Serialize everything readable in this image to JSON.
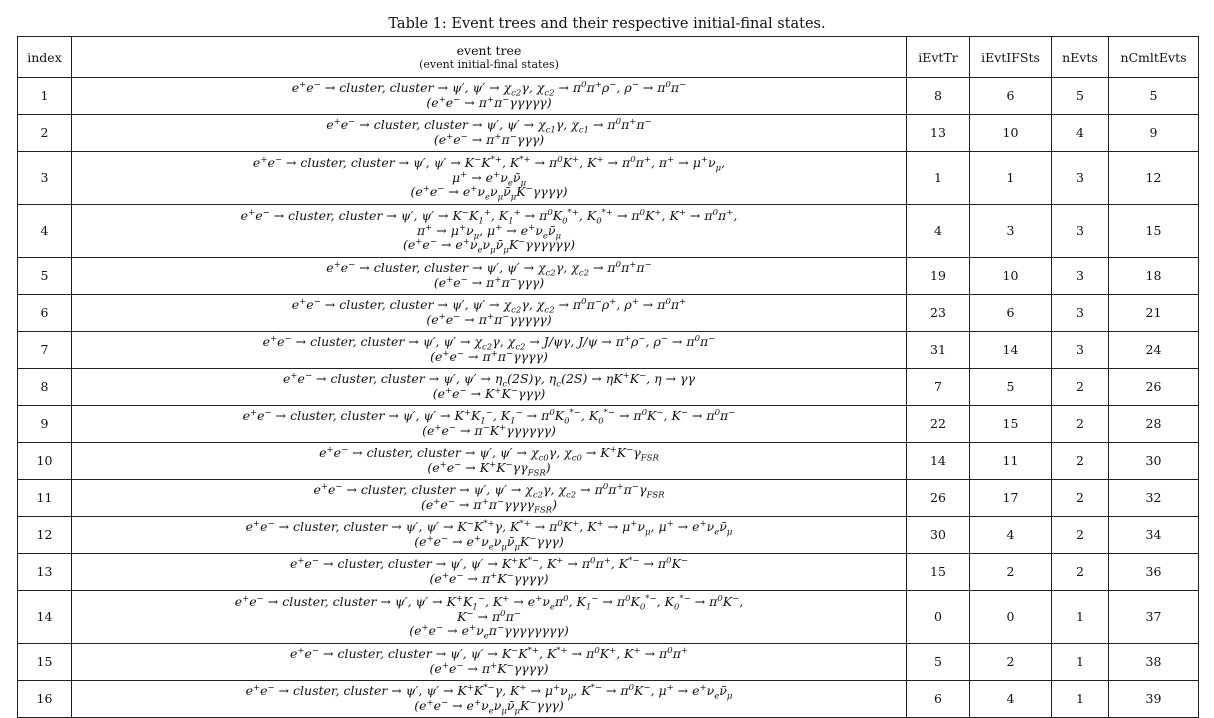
{
  "caption": "Table 1: Event trees and their respective initial-final states.",
  "headers": {
    "index": "index",
    "tree_line1": "event tree",
    "tree_line2": "(event initial-final states)",
    "iEvtTr": "iEvtTr",
    "iEvtIFSts": "iEvtIFSts",
    "nEvts": "nEvts",
    "nCmltEvts": "nCmltEvts"
  },
  "rows": [
    {
      "index": "1",
      "tree": [
        "e⁺e⁻ → cluster, cluster → ψ′, ψ′ → χc2γ, χc2 → π⁰π⁺ρ⁻, ρ⁻ → π⁰π⁻",
        "(e⁺e⁻ → π⁺π⁻γγγγγ)"
      ],
      "tree_html": [
        "e<sup>+</sup>e<sup>−</sup> → cluster, cluster → ψ′, ψ′ → χ<sub>c2</sub>γ, χ<sub>c2</sub> → π<sup>0</sup>π<sup>+</sup>ρ<sup>−</sup>, ρ<sup>−</sup> → π<sup>0</sup>π<sup>−</sup>",
        "(e<sup>+</sup>e<sup>−</sup> → π<sup>+</sup>π<sup>−</sup>γγγγγ)"
      ],
      "iEvtTr": "8",
      "iEvtIFSts": "6",
      "nEvts": "5",
      "nCmltEvts": "5"
    },
    {
      "index": "2",
      "tree": [
        "e⁺e⁻ → cluster, cluster → ψ′, ψ′ → χc1γ, χc1 → π⁰π⁺π⁻",
        "(e⁺e⁻ → π⁺π⁻γγγ)"
      ],
      "tree_html": [
        "e<sup>+</sup>e<sup>−</sup> → cluster, cluster → ψ′, ψ′ → χ<sub>c1</sub>γ, χ<sub>c1</sub> → π<sup>0</sup>π<sup>+</sup>π<sup>−</sup>",
        "(e<sup>+</sup>e<sup>−</sup> → π<sup>+</sup>π<sup>−</sup>γγγ)"
      ],
      "iEvtTr": "13",
      "iEvtIFSts": "10",
      "nEvts": "4",
      "nCmltEvts": "9"
    },
    {
      "index": "3",
      "tree": [
        "e⁺e⁻ → cluster, cluster → ψ′, ψ′ → K⁻K*⁺, K*⁺ → π⁰K⁺, K⁺ → π⁰π⁺, π⁺ → μ⁺νμ,",
        "μ⁺ → e⁺νeν̄μ",
        "(e⁺e⁻ → e⁺νeνμν̄μK⁻γγγγ)"
      ],
      "tree_html": [
        "e<sup>+</sup>e<sup>−</sup> → cluster, cluster → ψ′, ψ′ → K<sup>−</sup>K<sup>*+</sup>, K<sup>*+</sup> → π<sup>0</sup>K<sup>+</sup>, K<sup>+</sup> → π<sup>0</sup>π<sup>+</sup>, π<sup>+</sup> → μ<sup>+</sup>ν<sub>μ</sub>,",
        "μ<sup>+</sup> → e<sup>+</sup>ν<sub>e</sub>ν̄<sub>μ</sub>",
        "(e<sup>+</sup>e<sup>−</sup> → e<sup>+</sup>ν<sub>e</sub>ν<sub>μ</sub>ν̄<sub>μ</sub>K<sup>−</sup>γγγγ)"
      ],
      "iEvtTr": "1",
      "iEvtIFSts": "1",
      "nEvts": "3",
      "nCmltEvts": "12"
    },
    {
      "index": "4",
      "tree": [
        "e⁺e⁻ → cluster, cluster → ψ′, ψ′ → K⁻K1⁺, K1⁺ → π⁰K0*⁺, K0*⁺ → π⁰K⁺, K⁺ → π⁰π⁺,",
        "π⁺ → μ⁺νμ, μ⁺ → e⁺νeν̄μ",
        "(e⁺e⁻ → e⁺νeνμν̄μK⁻γγγγγγ)"
      ],
      "tree_html": [
        "e<sup>+</sup>e<sup>−</sup> → cluster, cluster → ψ′, ψ′ → K<sup>−</sup>K<sub>1</sub><sup>+</sup>, K<sub>1</sub><sup>+</sup> → π<sup>0</sup>K<sub>0</sub><sup>*+</sup>, K<sub>0</sub><sup>*+</sup> → π<sup>0</sup>K<sup>+</sup>, K<sup>+</sup> → π<sup>0</sup>π<sup>+</sup>,",
        "π<sup>+</sup> → μ<sup>+</sup>ν<sub>μ</sub>, μ<sup>+</sup> → e<sup>+</sup>ν<sub>e</sub>ν̄<sub>μ</sub>",
        "(e<sup>+</sup>e<sup>−</sup> → e<sup>+</sup>ν<sub>e</sub>ν<sub>μ</sub>ν̄<sub>μ</sub>K<sup>−</sup>γγγγγγ)"
      ],
      "iEvtTr": "4",
      "iEvtIFSts": "3",
      "nEvts": "3",
      "nCmltEvts": "15"
    },
    {
      "index": "5",
      "tree": [
        "e⁺e⁻ → cluster, cluster → ψ′, ψ′ → χc2γ, χc2 → π⁰π⁺π⁻",
        "(e⁺e⁻ → π⁺π⁻γγγ)"
      ],
      "tree_html": [
        "e<sup>+</sup>e<sup>−</sup> → cluster, cluster → ψ′, ψ′ → χ<sub>c2</sub>γ, χ<sub>c2</sub> → π<sup>0</sup>π<sup>+</sup>π<sup>−</sup>",
        "(e<sup>+</sup>e<sup>−</sup> → π<sup>+</sup>π<sup>−</sup>γγγ)"
      ],
      "iEvtTr": "19",
      "iEvtIFSts": "10",
      "nEvts": "3",
      "nCmltEvts": "18"
    },
    {
      "index": "6",
      "tree": [
        "e⁺e⁻ → cluster, cluster → ψ′, ψ′ → χc2γ, χc2 → π⁰π⁻ρ⁺, ρ⁺ → π⁰π⁺",
        "(e⁺e⁻ → π⁺π⁻γγγγγ)"
      ],
      "tree_html": [
        "e<sup>+</sup>e<sup>−</sup> → cluster, cluster → ψ′, ψ′ → χ<sub>c2</sub>γ, χ<sub>c2</sub> → π<sup>0</sup>π<sup>−</sup>ρ<sup>+</sup>, ρ<sup>+</sup> → π<sup>0</sup>π<sup>+</sup>",
        "(e<sup>+</sup>e<sup>−</sup> → π<sup>+</sup>π<sup>−</sup>γγγγγ)"
      ],
      "iEvtTr": "23",
      "iEvtIFSts": "6",
      "nEvts": "3",
      "nCmltEvts": "21"
    },
    {
      "index": "7",
      "tree": [
        "e⁺e⁻ → cluster, cluster → ψ′, ψ′ → χc2γ, χc2 → J/ψγ, J/ψ → π⁺ρ⁻, ρ⁻ → π⁰π⁻",
        "(e⁺e⁻ → π⁺π⁻γγγγ)"
      ],
      "tree_html": [
        "e<sup>+</sup>e<sup>−</sup> → cluster, cluster → ψ′, ψ′ → χ<sub>c2</sub>γ, χ<sub>c2</sub> → J/ψγ, J/ψ → π<sup>+</sup>ρ<sup>−</sup>, ρ<sup>−</sup> → π<sup>0</sup>π<sup>−</sup>",
        "(e<sup>+</sup>e<sup>−</sup> → π<sup>+</sup>π<sup>−</sup>γγγγ)"
      ],
      "iEvtTr": "31",
      "iEvtIFSts": "14",
      "nEvts": "3",
      "nCmltEvts": "24"
    },
    {
      "index": "8",
      "tree": [
        "e⁺e⁻ → cluster, cluster → ψ′, ψ′ → ηc(2S)γ, ηc(2S) → ηK⁺K⁻, η → γγ",
        "(e⁺e⁻ → K⁺K⁻γγγ)"
      ],
      "tree_html": [
        "e<sup>+</sup>e<sup>−</sup> → cluster, cluster → ψ′, ψ′ → η<sub>c</sub>(2S)γ, η<sub>c</sub>(2S) → ηK<sup>+</sup>K<sup>−</sup>, η → γγ",
        "(e<sup>+</sup>e<sup>−</sup> → K<sup>+</sup>K<sup>−</sup>γγγ)"
      ],
      "iEvtTr": "7",
      "iEvtIFSts": "5",
      "nEvts": "2",
      "nCmltEvts": "26"
    },
    {
      "index": "9",
      "tree": [
        "e⁺e⁻ → cluster, cluster → ψ′, ψ′ → K⁺K1⁻, K1⁻ → π⁰K0*⁻, K0*⁻ → π⁰K⁻, K⁻ → π⁰π⁻",
        "(e⁺e⁻ → π⁻K⁺γγγγγγ)"
      ],
      "tree_html": [
        "e<sup>+</sup>e<sup>−</sup> → cluster, cluster → ψ′, ψ′ → K<sup>+</sup>K<sub>1</sub><sup>−</sup>, K<sub>1</sub><sup>−</sup> → π<sup>0</sup>K<sub>0</sub><sup>*−</sup>, K<sub>0</sub><sup>*−</sup> → π<sup>0</sup>K<sup>−</sup>, K<sup>−</sup> → π<sup>0</sup>π<sup>−</sup>",
        "(e<sup>+</sup>e<sup>−</sup> → π<sup>−</sup>K<sup>+</sup>γγγγγγ)"
      ],
      "iEvtTr": "22",
      "iEvtIFSts": "15",
      "nEvts": "2",
      "nCmltEvts": "28"
    },
    {
      "index": "10",
      "tree": [
        "e⁺e⁻ → cluster, cluster → ψ′, ψ′ → χc0γ, χc0 → K⁺K⁻γFSR",
        "(e⁺e⁻ → K⁺K⁻γγFSR)"
      ],
      "tree_html": [
        "e<sup>+</sup>e<sup>−</sup> → cluster, cluster → ψ′, ψ′ → χ<sub>c0</sub>γ, χ<sub>c0</sub> → K<sup>+</sup>K<sup>−</sup>γ<sub>FSR</sub>",
        "(e<sup>+</sup>e<sup>−</sup> → K<sup>+</sup>K<sup>−</sup>γγ<sub>FSR</sub>)"
      ],
      "iEvtTr": "14",
      "iEvtIFSts": "11",
      "nEvts": "2",
      "nCmltEvts": "30"
    },
    {
      "index": "11",
      "tree": [
        "e⁺e⁻ → cluster, cluster → ψ′, ψ′ → χc2γ, χc2 → π⁰π⁺π⁻γFSR",
        "(e⁺e⁻ → π⁺π⁻γγγγFSR)"
      ],
      "tree_html": [
        "e<sup>+</sup>e<sup>−</sup> → cluster, cluster → ψ′, ψ′ → χ<sub>c2</sub>γ, χ<sub>c2</sub> → π<sup>0</sup>π<sup>+</sup>π<sup>−</sup>γ<sub>FSR</sub>",
        "(e<sup>+</sup>e<sup>−</sup> → π<sup>+</sup>π<sup>−</sup>γγγγ<sub>FSR</sub>)"
      ],
      "iEvtTr": "26",
      "iEvtIFSts": "17",
      "nEvts": "2",
      "nCmltEvts": "32"
    },
    {
      "index": "12",
      "tree": [
        "e⁺e⁻ → cluster, cluster → ψ′, ψ′ → K⁻K*⁺γ, K*⁺ → π⁰K⁺, K⁺ → μ⁺νμ, μ⁺ → e⁺νeν̄μ",
        "(e⁺e⁻ → e⁺νeνμν̄μK⁻γγγ)"
      ],
      "tree_html": [
        "e<sup>+</sup>e<sup>−</sup> → cluster, cluster → ψ′, ψ′ → K<sup>−</sup>K<sup>*+</sup>γ, K<sup>*+</sup> → π<sup>0</sup>K<sup>+</sup>, K<sup>+</sup> → μ<sup>+</sup>ν<sub>μ</sub>, μ<sup>+</sup> → e<sup>+</sup>ν<sub>e</sub>ν̄<sub>μ</sub>",
        "(e<sup>+</sup>e<sup>−</sup> → e<sup>+</sup>ν<sub>e</sub>ν<sub>μ</sub>ν̄<sub>μ</sub>K<sup>−</sup>γγγ)"
      ],
      "iEvtTr": "30",
      "iEvtIFSts": "4",
      "nEvts": "2",
      "nCmltEvts": "34"
    },
    {
      "index": "13",
      "tree": [
        "e⁺e⁻ → cluster, cluster → ψ′, ψ′ → K⁺K*⁻, K⁺ → π⁰π⁺, K*⁻ → π⁰K⁻",
        "(e⁺e⁻ → π⁺K⁻γγγγ)"
      ],
      "tree_html": [
        "e<sup>+</sup>e<sup>−</sup> → cluster, cluster → ψ′, ψ′ → K<sup>+</sup>K<sup>*−</sup>, K<sup>+</sup> → π<sup>0</sup>π<sup>+</sup>, K<sup>*−</sup> → π<sup>0</sup>K<sup>−</sup>",
        "(e<sup>+</sup>e<sup>−</sup> → π<sup>+</sup>K<sup>−</sup>γγγγ)"
      ],
      "iEvtTr": "15",
      "iEvtIFSts": "2",
      "nEvts": "2",
      "nCmltEvts": "36"
    },
    {
      "index": "14",
      "tree": [
        "e⁺e⁻ → cluster, cluster → ψ′, ψ′ → K⁺K1⁻, K⁺ → e⁺νeπ⁰, K1⁻ → π⁰K0*⁻, K0*⁻ → π⁰K⁻,",
        "K⁻ → π⁰π⁻",
        "(e⁺e⁻ → e⁺νeπ⁻γγγγγγγγ)"
      ],
      "tree_html": [
        "e<sup>+</sup>e<sup>−</sup> → cluster, cluster → ψ′, ψ′ → K<sup>+</sup>K<sub>1</sub><sup>−</sup>, K<sup>+</sup> → e<sup>+</sup>ν<sub>e</sub>π<sup>0</sup>, K<sub>1</sub><sup>−</sup> → π<sup>0</sup>K<sub>0</sub><sup>*−</sup>, K<sub>0</sub><sup>*−</sup> → π<sup>0</sup>K<sup>−</sup>,",
        "K<sup>−</sup> → π<sup>0</sup>π<sup>−</sup>",
        "(e<sup>+</sup>e<sup>−</sup> → e<sup>+</sup>ν<sub>e</sub>π<sup>−</sup>γγγγγγγγ)"
      ],
      "iEvtTr": "0",
      "iEvtIFSts": "0",
      "nEvts": "1",
      "nCmltEvts": "37"
    },
    {
      "index": "15",
      "tree": [
        "e⁺e⁻ → cluster, cluster → ψ′, ψ′ → K⁻K*⁺, K*⁺ → π⁰K⁺, K⁺ → π⁰π⁺",
        "(e⁺e⁻ → π⁺K⁻γγγγ)"
      ],
      "tree_html": [
        "e<sup>+</sup>e<sup>−</sup> → cluster, cluster → ψ′, ψ′ → K<sup>−</sup>K<sup>*+</sup>, K<sup>*+</sup> → π<sup>0</sup>K<sup>+</sup>, K<sup>+</sup> → π<sup>0</sup>π<sup>+</sup>",
        "(e<sup>+</sup>e<sup>−</sup> → π<sup>+</sup>K<sup>−</sup>γγγγ)"
      ],
      "iEvtTr": "5",
      "iEvtIFSts": "2",
      "nEvts": "1",
      "nCmltEvts": "38"
    },
    {
      "index": "16",
      "tree": [
        "e⁺e⁻ → cluster, cluster → ψ′, ψ′ → K⁺K*⁻γ, K⁺ → μ⁺νμ, K*⁻ → π⁰K⁻, μ⁺ → e⁺νeν̄μ",
        "(e⁺e⁻ → e⁺νeνμν̄μK⁻γγγ)"
      ],
      "tree_html": [
        "e<sup>+</sup>e<sup>−</sup> → cluster, cluster → ψ′, ψ′ → K<sup>+</sup>K<sup>*−</sup>γ, K<sup>+</sup> → μ<sup>+</sup>ν<sub>μ</sub>, K<sup>*−</sup> → π<sup>0</sup>K<sup>−</sup>, μ<sup>+</sup> → e<sup>+</sup>ν<sub>e</sub>ν̄<sub>μ</sub>",
        "(e<sup>+</sup>e<sup>−</sup> → e<sup>+</sup>ν<sub>e</sub>ν<sub>μ</sub>ν̄<sub>μ</sub>K<sup>−</sup>γγγ)"
      ],
      "iEvtTr": "6",
      "iEvtIFSts": "4",
      "nEvts": "1",
      "nCmltEvts": "39"
    }
  ]
}
